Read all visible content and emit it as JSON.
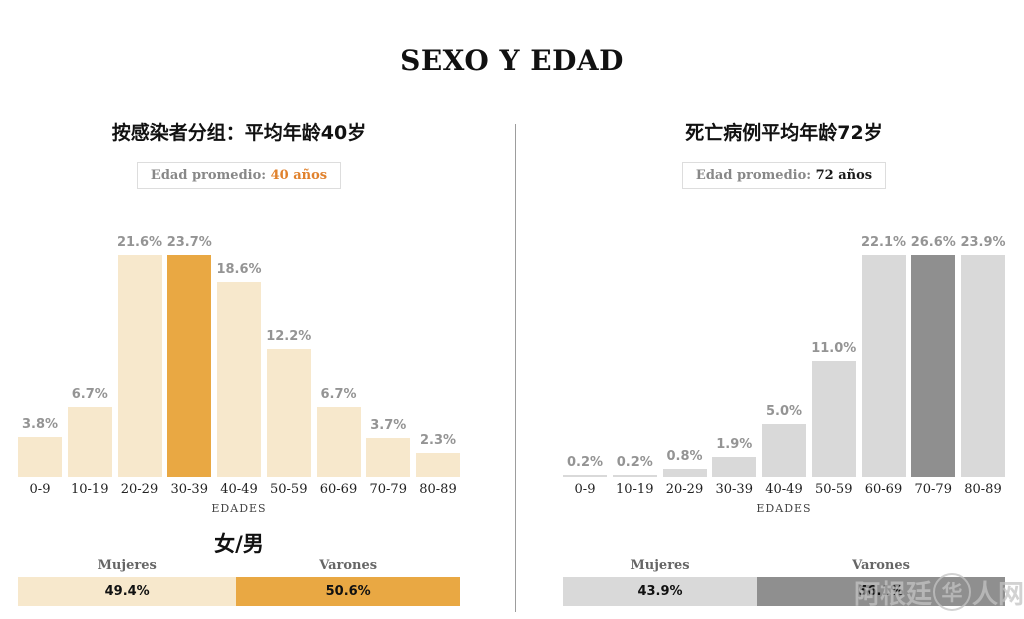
{
  "header": {
    "title": "SEXO Y EDAD"
  },
  "watermark": {
    "prefix": "阿根廷",
    "logo_glyph": "华",
    "suffix": "人网"
  },
  "chart_data": [
    {
      "type": "bar",
      "panel": "infected-by-age",
      "title": "按感染者分组：平均年龄40岁",
      "badge": {
        "label": "Edad promedio:",
        "value": "40 años",
        "value_color": "#e0812c"
      },
      "categories": [
        "0-9",
        "10-19",
        "20-29",
        "30-39",
        "40-49",
        "50-59",
        "60-69",
        "70-79",
        "80-89"
      ],
      "values": [
        3.8,
        6.7,
        21.6,
        23.7,
        18.6,
        12.2,
        6.7,
        3.7,
        2.3
      ],
      "value_suffix": "%",
      "highlight_category": "30-39",
      "xlabel": "EDADES",
      "ylim": [
        0,
        25
      ],
      "colors": {
        "bar": "#f7e8cc",
        "highlight": "#e9a843",
        "value_label": "#949494"
      },
      "gender_heading": "女/男",
      "gender": {
        "segments": [
          {
            "label": "Mujeres",
            "pct": 49.4,
            "display": "49.4%",
            "color": "#f7e8cc"
          },
          {
            "label": "Varones",
            "pct": 50.6,
            "display": "50.6%",
            "color": "#e9a843"
          }
        ]
      }
    },
    {
      "type": "bar",
      "panel": "deaths-by-age",
      "title": "死亡病例平均年龄72岁",
      "badge": {
        "label": "Edad promedio:",
        "value": "72 años",
        "value_color": "#1a1a1a"
      },
      "categories": [
        "0-9",
        "10-19",
        "20-29",
        "30-39",
        "40-49",
        "50-59",
        "60-69",
        "70-79",
        "80-89"
      ],
      "values": [
        0.2,
        0.2,
        0.8,
        1.9,
        5.0,
        11.0,
        22.1,
        26.6,
        23.9
      ],
      "value_suffix": "%",
      "highlight_category": "70-79",
      "xlabel": "EDADES",
      "ylim": [
        0,
        27
      ],
      "colors": {
        "bar": "#d9d9d9",
        "highlight": "#8f8f8f",
        "value_label": "#949494"
      },
      "gender_heading": "",
      "gender": {
        "segments": [
          {
            "label": "Mujeres",
            "pct": 43.9,
            "display": "43.9%",
            "color": "#d9d9d9"
          },
          {
            "label": "Varones",
            "pct": 56.1,
            "display": "56.1%",
            "color": "#8f8f8f"
          }
        ]
      }
    }
  ]
}
